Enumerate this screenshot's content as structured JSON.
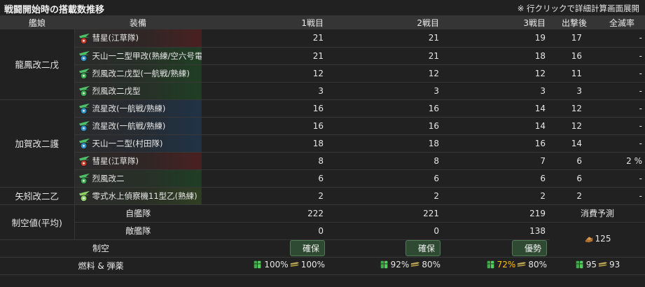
{
  "header": {
    "title": "戦闘開始時の搭載数推移",
    "note": "※ 行クリックで詳細計算画面展開"
  },
  "columns": {
    "ship": "艦娘",
    "equip": "装備",
    "b1": "1戦目",
    "b2": "2戦目",
    "b3": "3戦目",
    "after": "出撃後",
    "wipe": "全滅率"
  },
  "ships": [
    {
      "name": "龍鳳改二戊",
      "slots": [
        {
          "name": "彗星(江草隊)",
          "icon": "dive-bomber-icon",
          "b1": "21",
          "b2": "21",
          "b3": "19",
          "after": "17",
          "wipe": "-"
        },
        {
          "name": "天山一二型甲改(熟練/空六号電…",
          "icon": "torpedo-bomber-icon",
          "b1": "21",
          "b2": "21",
          "b3": "18",
          "after": "16",
          "wipe": "-"
        },
        {
          "name": "烈風改二戊型(一航戦/熟練)",
          "icon": "fighter-icon",
          "b1": "12",
          "b2": "12",
          "b3": "12",
          "after": "11",
          "wipe": "-"
        },
        {
          "name": "烈風改二戊型",
          "icon": "fighter-icon",
          "b1": "3",
          "b2": "3",
          "b3": "3",
          "after": "3",
          "wipe": "-"
        }
      ]
    },
    {
      "name": "加賀改二護",
      "slots": [
        {
          "name": "流星改(一航戦/熟練)",
          "icon": "attacker-icon",
          "b1": "16",
          "b2": "16",
          "b3": "14",
          "after": "12",
          "wipe": "-"
        },
        {
          "name": "流星改(一航戦/熟練)",
          "icon": "attacker-icon",
          "b1": "16",
          "b2": "16",
          "b3": "14",
          "after": "12",
          "wipe": "-"
        },
        {
          "name": "天山一二型(村田隊)",
          "icon": "attacker-icon",
          "b1": "18",
          "b2": "18",
          "b3": "16",
          "after": "14",
          "wipe": "-"
        },
        {
          "name": "彗星(江草隊)",
          "icon": "dive-bomber-icon",
          "b1": "8",
          "b2": "8",
          "b3": "7",
          "after": "6",
          "wipe": "2 %"
        },
        {
          "name": "烈風改二",
          "icon": "fighter-icon",
          "b1": "6",
          "b2": "6",
          "b3": "6",
          "after": "6",
          "wipe": "-"
        }
      ]
    },
    {
      "name": "矢矧改二乙",
      "slots": [
        {
          "name": "零式水上偵察機11型乙(熟練)",
          "icon": "seaplane-icon",
          "b1": "2",
          "b2": "2",
          "b3": "2",
          "after": "2",
          "wipe": "-"
        }
      ]
    }
  ],
  "air": {
    "label": "制空値(平均)",
    "own_label": "自艦隊",
    "own": [
      "222",
      "221",
      "219"
    ],
    "enemy_label": "敵艦隊",
    "enemy": [
      "0",
      "0",
      "138"
    ],
    "consume_label": "消費予測",
    "consume_value": "125"
  },
  "control": {
    "label": "制空",
    "values": [
      "確保",
      "確保",
      "優勢"
    ]
  },
  "supply": {
    "label": "燃料 & 弾薬",
    "fuel": [
      "100%",
      "92%",
      "72%"
    ],
    "ammo": [
      "100%",
      "80%",
      "80%"
    ],
    "fuel_total": "95",
    "ammo_total": "93",
    "warn_color": "#ffc107"
  }
}
